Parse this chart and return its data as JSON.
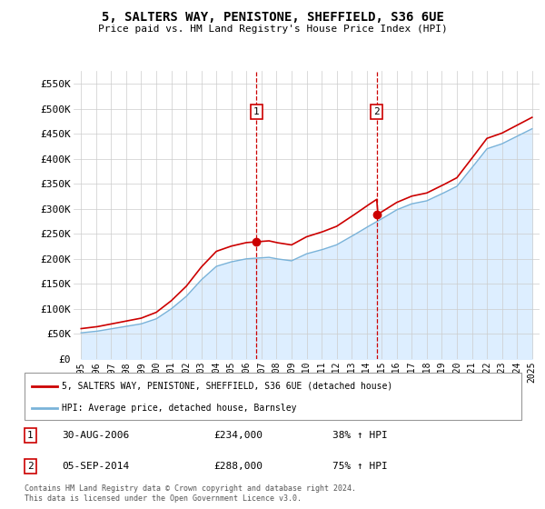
{
  "title": "5, SALTERS WAY, PENISTONE, SHEFFIELD, S36 6UE",
  "subtitle": "Price paid vs. HM Land Registry's House Price Index (HPI)",
  "legend_line1": "5, SALTERS WAY, PENISTONE, SHEFFIELD, S36 6UE (detached house)",
  "legend_line2": "HPI: Average price, detached house, Barnsley",
  "footer": "Contains HM Land Registry data © Crown copyright and database right 2024.\nThis data is licensed under the Open Government Licence v3.0.",
  "sale1_date": "30-AUG-2006",
  "sale1_price": "£234,000",
  "sale1_hpi": "38% ↑ HPI",
  "sale1_year": 2006.67,
  "sale1_value": 234000,
  "sale2_date": "05-SEP-2014",
  "sale2_price": "£288,000",
  "sale2_hpi": "75% ↑ HPI",
  "sale2_year": 2014.67,
  "sale2_value": 288000,
  "hpi_color": "#7ab3d9",
  "hpi_fill_color": "#ddeeff",
  "price_color": "#cc0000",
  "sale_dot_color": "#cc0000",
  "vline_color": "#cc0000",
  "grid_color": "#cccccc",
  "background_color": "#ffffff",
  "plot_bg_color": "#ffffff",
  "ylim": [
    0,
    575000
  ],
  "xlim_start": 1994.5,
  "xlim_end": 2025.5,
  "yticks": [
    0,
    50000,
    100000,
    150000,
    200000,
    250000,
    300000,
    350000,
    400000,
    450000,
    500000,
    550000
  ],
  "ytick_labels": [
    "£0",
    "£50K",
    "£100K",
    "£150K",
    "£200K",
    "£250K",
    "£300K",
    "£350K",
    "£400K",
    "£450K",
    "£500K",
    "£550K"
  ],
  "xticks": [
    1995,
    1996,
    1997,
    1998,
    1999,
    2000,
    2001,
    2002,
    2003,
    2004,
    2005,
    2006,
    2007,
    2008,
    2009,
    2010,
    2011,
    2012,
    2013,
    2014,
    2015,
    2016,
    2017,
    2018,
    2019,
    2020,
    2021,
    2022,
    2023,
    2024,
    2025
  ]
}
